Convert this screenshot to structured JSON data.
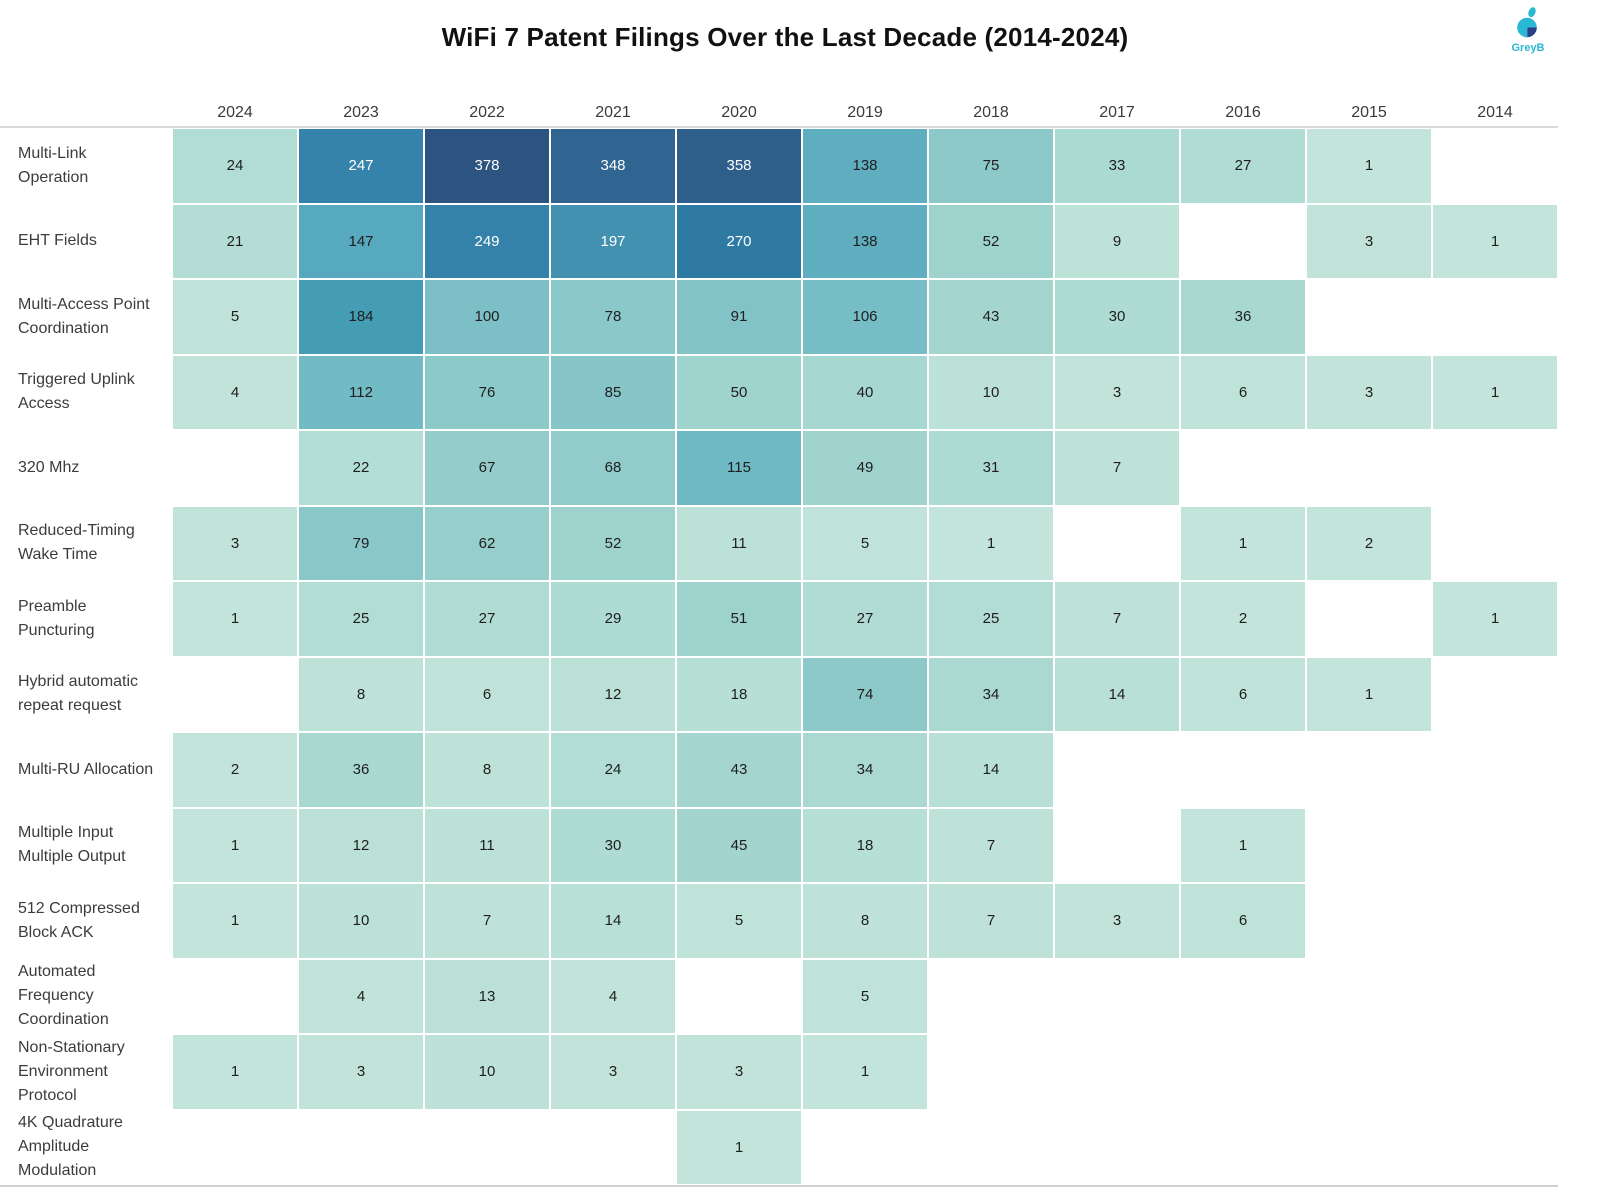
{
  "title": "WiFi 7 Patent Filings Over the Last Decade (2014-2024)",
  "logo": {
    "label": "GreyB",
    "accent_color": "#29b9d2",
    "dark_color": "#2a3f85"
  },
  "chart_data": {
    "type": "heatmap",
    "title": "WiFi 7 Patent Filings Over the Last Decade (2014-2024)",
    "columns": [
      "2024",
      "2023",
      "2022",
      "2021",
      "2020",
      "2019",
      "2018",
      "2017",
      "2016",
      "2015",
      "2014"
    ],
    "rows": [
      {
        "label": "Multi-Link Operation",
        "values": [
          24,
          247,
          378,
          348,
          358,
          138,
          75,
          33,
          27,
          1,
          null
        ]
      },
      {
        "label": "EHT Fields",
        "values": [
          21,
          147,
          249,
          197,
          270,
          138,
          52,
          9,
          null,
          3,
          1
        ]
      },
      {
        "label": "Multi-Access Point Coordination",
        "values": [
          5,
          184,
          100,
          78,
          91,
          106,
          43,
          30,
          36,
          null,
          null
        ]
      },
      {
        "label": "Triggered Uplink Access",
        "values": [
          4,
          112,
          76,
          85,
          50,
          40,
          10,
          3,
          6,
          3,
          1
        ]
      },
      {
        "label": "320 Mhz",
        "values": [
          null,
          22,
          67,
          68,
          115,
          49,
          31,
          7,
          null,
          null,
          null
        ]
      },
      {
        "label": "Reduced-Timing Wake Time",
        "values": [
          3,
          79,
          62,
          52,
          11,
          5,
          1,
          null,
          1,
          2,
          null
        ]
      },
      {
        "label": "Preamble Puncturing",
        "values": [
          1,
          25,
          27,
          29,
          51,
          27,
          25,
          7,
          2,
          null,
          1
        ]
      },
      {
        "label": "Hybrid automatic repeat request",
        "values": [
          null,
          8,
          6,
          12,
          18,
          74,
          34,
          14,
          6,
          1,
          null
        ]
      },
      {
        "label": "Multi-RU Allocation",
        "values": [
          2,
          36,
          8,
          24,
          43,
          34,
          14,
          null,
          null,
          null,
          null
        ]
      },
      {
        "label": "Multiple Input Multiple Output",
        "values": [
          1,
          12,
          11,
          30,
          45,
          18,
          7,
          null,
          1,
          null,
          null
        ]
      },
      {
        "label": "512 Compressed Block ACK",
        "values": [
          1,
          10,
          7,
          14,
          5,
          8,
          7,
          3,
          6,
          null,
          null
        ]
      },
      {
        "label": "Automated Frequency Coordination",
        "values": [
          null,
          4,
          13,
          4,
          null,
          5,
          null,
          null,
          null,
          null,
          null
        ]
      },
      {
        "label": "Non-Stationary Environment Protocol",
        "values": [
          1,
          3,
          10,
          3,
          3,
          1,
          null,
          null,
          null,
          null,
          null
        ]
      },
      {
        "label": "4K Quadrature Amplitude Modulation",
        "values": [
          null,
          null,
          null,
          null,
          1,
          null,
          null,
          null,
          null,
          null,
          null
        ]
      }
    ],
    "value_range": [
      1,
      378
    ],
    "color_scale": {
      "stops": [
        {
          "value": 1,
          "color": "#c3e4da"
        },
        {
          "value": 24,
          "color": "#b2ddd4"
        },
        {
          "value": 50,
          "color": "#9fd3cd"
        },
        {
          "value": 75,
          "color": "#8dc9c9"
        },
        {
          "value": 100,
          "color": "#7cbfc6"
        },
        {
          "value": 115,
          "color": "#6fb9c4"
        },
        {
          "value": 147,
          "color": "#57a9bf"
        },
        {
          "value": 184,
          "color": "#459cb5"
        },
        {
          "value": 197,
          "color": "#4291b1"
        },
        {
          "value": 247,
          "color": "#3583ab"
        },
        {
          "value": 270,
          "color": "#2f7aa3"
        },
        {
          "value": 348,
          "color": "#2f6590"
        },
        {
          "value": 378,
          "color": "#2d5380"
        }
      ],
      "white_text_threshold": 190,
      "dark_text_color": "#1e1e1e",
      "light_text_color": "#ffffff"
    },
    "layout": {
      "legend": "none",
      "grid": "off",
      "gridline_color": "#d9d9d9"
    }
  }
}
